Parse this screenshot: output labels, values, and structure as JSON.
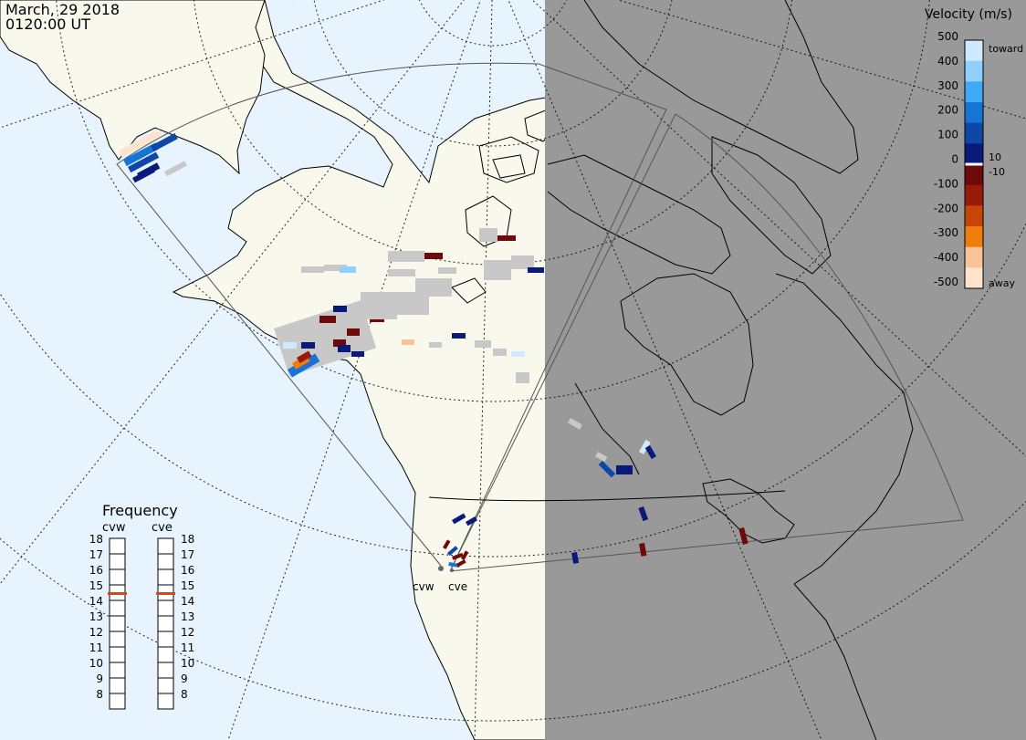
{
  "header": {
    "date": "March, 29 2018",
    "time": "0120:00 UT"
  },
  "velocity_legend": {
    "title": "Velocity (m/s)",
    "toward_label": "toward",
    "away_label": "away",
    "ticks": [
      "500",
      "400",
      "300",
      "200",
      "100",
      "0",
      "-100",
      "-200",
      "-300",
      "-400",
      "-500"
    ],
    "inner_ticks": [
      "10",
      "-10"
    ],
    "colors": [
      "#cfeaff",
      "#8fd0ff",
      "#3fa9f5",
      "#1574d4",
      "#0e47a6",
      "#0a1a7a",
      "#6e0a0a",
      "#9a1a0a",
      "#c84508",
      "#ef7d0d",
      "#f9c39a",
      "#ffe3cc"
    ]
  },
  "frequency_legend": {
    "title": "Frequency",
    "radars": [
      {
        "name": "cvw",
        "freq_mhz": 15
      },
      {
        "name": "cve",
        "freq_mhz": 15
      }
    ],
    "scale": [
      "18",
      "17",
      "16",
      "15",
      "14",
      "13",
      "12",
      "11",
      "10",
      "9",
      "8"
    ],
    "marker_color": "#d9461c"
  },
  "radars": [
    {
      "label": "cvw"
    },
    {
      "label": "cve"
    }
  ],
  "map": {
    "ocean_color": "#e8f4fd",
    "land_color": "#f8f8ec",
    "night_color": "#999999",
    "ground_scatter_color": "#c8c8c8"
  }
}
